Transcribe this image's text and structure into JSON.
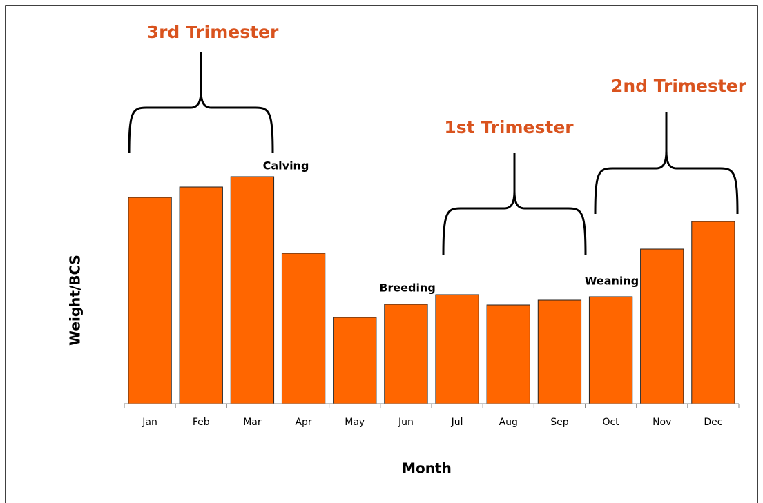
{
  "chart_data": {
    "type": "bar",
    "x_label": "Month",
    "y_label": "Weight/BCS",
    "categories": [
      "Jan",
      "Feb",
      "Mar",
      "Apr",
      "May",
      "Jun",
      "Jul",
      "Aug",
      "Sep",
      "Oct",
      "Nov",
      "Dec"
    ],
    "values": [
      299,
      314,
      329,
      218,
      125,
      144,
      158,
      143,
      150,
      155,
      224,
      264
    ],
    "color": "#ff6600",
    "ylim": [
      0,
      400
    ],
    "annotations": [
      "3rd Trimester",
      "1st Trimester",
      "2nd Trimester",
      "Calving",
      "Breeding",
      "Weaning"
    ]
  }
}
